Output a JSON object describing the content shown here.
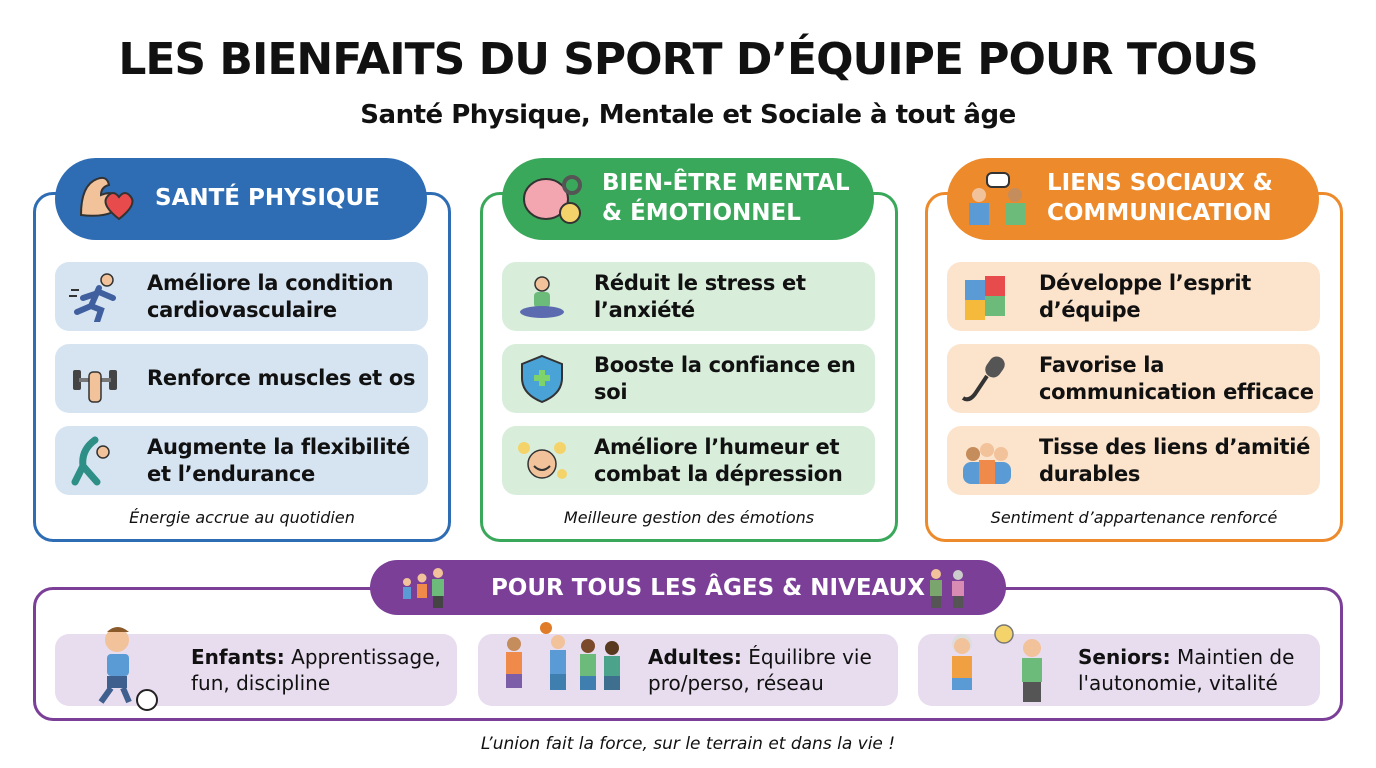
{
  "header": {
    "title": "LES BIENFAITS DU SPORT D’ÉQUIPE POUR TOUS",
    "subtitle": "Santé Physique, Mentale et Sociale à tout âge"
  },
  "colors": {
    "physical": "#2e6db4",
    "mental": "#3aa85a",
    "social": "#ec8a2c",
    "ages": "#7b3f98"
  },
  "panels": [
    {
      "title": "SANTÉ PHYSIQUE",
      "icon": "muscle-heart-icon",
      "items": [
        {
          "text": "Améliore la condition cardiovasculaire",
          "icon": "runner-icon"
        },
        {
          "text": "Renforce muscles et os",
          "icon": "dumbbell-icon"
        },
        {
          "text": "Augmente la flexibilité et l’endurance",
          "icon": "stretching-icon"
        }
      ],
      "caption": "Énergie accrue au quotidien"
    },
    {
      "title": "BIEN-ÊTRE MENTAL & ÉMOTIONNEL",
      "icon": "brain-gear-icon",
      "items": [
        {
          "text": "Réduit le stress et l’anxiété",
          "icon": "meditation-icon"
        },
        {
          "text": "Booste la confiance en soi",
          "icon": "shield-plus-icon"
        },
        {
          "text": "Améliore l’humeur et combat la dépression",
          "icon": "happy-face-icon"
        }
      ],
      "caption": "Meilleure gestion des émotions"
    },
    {
      "title": "LIENS SOCIAUX & COMMUNICATION",
      "icon": "chat-people-icon",
      "items": [
        {
          "text": "Développe l’esprit d’équipe",
          "icon": "puzzle-icon"
        },
        {
          "text": "Favorise la communication efficace",
          "icon": "microphone-icon"
        },
        {
          "text": "Tisse des liens d’amitié durables",
          "icon": "group-hug-icon"
        }
      ],
      "caption": "Sentiment d’appartenance renforcé"
    }
  ],
  "ages": {
    "title": "POUR TOUS LES ÂGES & NIVEAUX",
    "items": [
      {
        "label": "Enfants:",
        "text": "Apprentissage, fun, discipline",
        "icon": "child-soccer-icon"
      },
      {
        "label": "Adultes:",
        "text": "Équilibre vie pro/perso, réseau",
        "icon": "basketball-players-icon"
      },
      {
        "label": "Seniors:",
        "text": "Maintien de l'autonomie, vitalité",
        "icon": "seniors-volleyball-icon"
      }
    ]
  },
  "footer": "L’union fait la force, sur le terrain et dans la vie !"
}
